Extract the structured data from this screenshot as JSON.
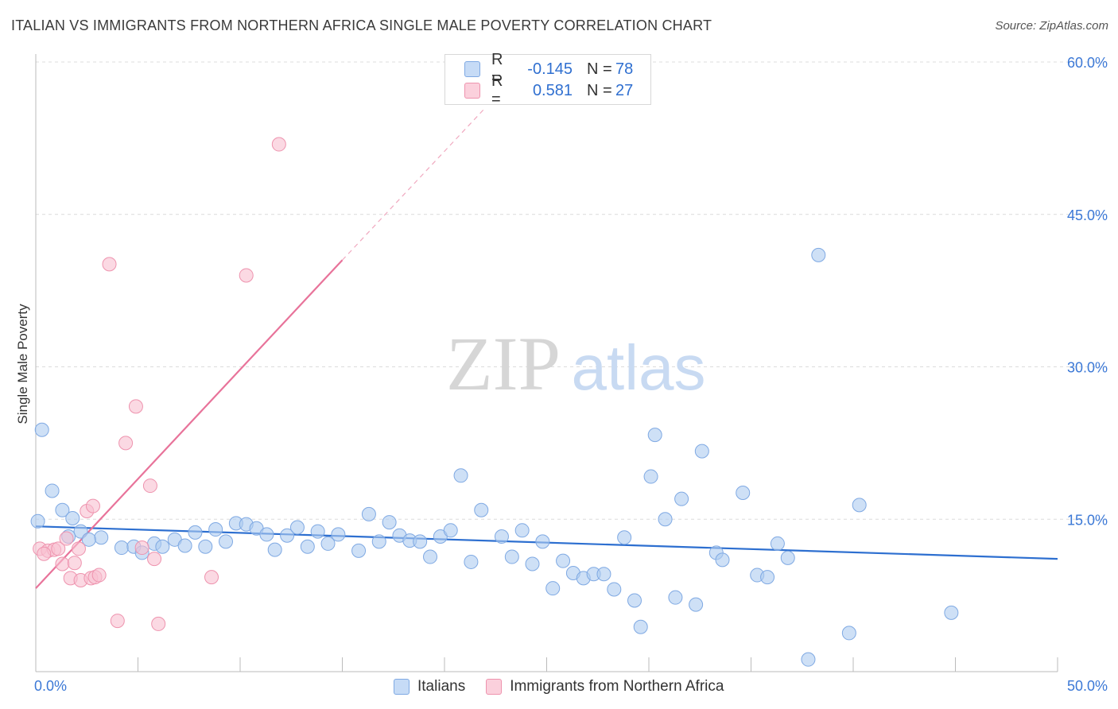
{
  "header": {
    "title": "ITALIAN VS IMMIGRANTS FROM NORTHERN AFRICA SINGLE MALE POVERTY CORRELATION CHART",
    "source": "Source: ZipAtlas.com"
  },
  "watermark": {
    "zip": "ZIP",
    "atlas": "atlas"
  },
  "legend": {
    "r_label": "R =",
    "n_label": "N =",
    "entries": [
      {
        "name": "Italians",
        "r": "-0.145",
        "n": "78",
        "color": "#aecbf0",
        "stroke": "#7fa9e3"
      },
      {
        "name": "Immigrants from Northern Africa",
        "r": "0.581",
        "n": "27",
        "color": "#f8bfd0",
        "stroke": "#ee93ae"
      }
    ]
  },
  "chart_data": {
    "type": "scatter",
    "title": "ITALIAN VS IMMIGRANTS FROM NORTHERN AFRICA SINGLE MALE POVERTY CORRELATION CHART",
    "xlabel": "",
    "ylabel": "Single Male Poverty",
    "xlim": [
      0,
      50
    ],
    "ylim": [
      0,
      60
    ],
    "x_tick_labels": [
      "0.0%",
      "50.0%"
    ],
    "y_tick_labels": [
      "15.0%",
      "30.0%",
      "45.0%",
      "60.0%"
    ],
    "y_ticks": [
      15,
      30,
      45,
      60
    ],
    "grid": true,
    "series": [
      {
        "name": "Italians",
        "color": "#aecbf0",
        "stroke": "#7fa9e3",
        "trend": {
          "x": [
            0,
            50
          ],
          "y": [
            14.3,
            11.1
          ],
          "color": "#2d6fd0"
        },
        "points": [
          [
            0.3,
            23.8
          ],
          [
            0.8,
            17.8
          ],
          [
            1.3,
            15.9
          ],
          [
            1.8,
            15.1
          ],
          [
            2.2,
            13.8
          ],
          [
            3.2,
            13.2
          ],
          [
            2.6,
            13.0
          ],
          [
            4.2,
            12.2
          ],
          [
            4.8,
            12.3
          ],
          [
            5.2,
            11.7
          ],
          [
            5.8,
            12.6
          ],
          [
            6.2,
            12.3
          ],
          [
            6.8,
            13.0
          ],
          [
            7.3,
            12.4
          ],
          [
            7.8,
            13.7
          ],
          [
            8.3,
            12.3
          ],
          [
            8.8,
            14.0
          ],
          [
            9.3,
            12.8
          ],
          [
            9.8,
            14.6
          ],
          [
            10.3,
            14.5
          ],
          [
            10.8,
            14.1
          ],
          [
            11.3,
            13.5
          ],
          [
            11.7,
            12.0
          ],
          [
            12.3,
            13.4
          ],
          [
            12.8,
            14.2
          ],
          [
            13.3,
            12.3
          ],
          [
            13.8,
            13.8
          ],
          [
            14.3,
            12.6
          ],
          [
            14.8,
            13.5
          ],
          [
            15.8,
            11.9
          ],
          [
            16.3,
            15.5
          ],
          [
            16.8,
            12.8
          ],
          [
            17.3,
            14.7
          ],
          [
            17.8,
            13.4
          ],
          [
            18.3,
            12.9
          ],
          [
            18.8,
            12.8
          ],
          [
            19.3,
            11.3
          ],
          [
            19.8,
            13.3
          ],
          [
            20.3,
            13.9
          ],
          [
            20.8,
            19.3
          ],
          [
            21.3,
            10.8
          ],
          [
            21.8,
            15.9
          ],
          [
            22.8,
            13.3
          ],
          [
            23.3,
            11.3
          ],
          [
            23.8,
            13.9
          ],
          [
            24.3,
            10.6
          ],
          [
            24.8,
            12.8
          ],
          [
            25.3,
            8.2
          ],
          [
            25.8,
            10.9
          ],
          [
            26.3,
            9.7
          ],
          [
            26.8,
            9.2
          ],
          [
            27.3,
            9.6
          ],
          [
            27.8,
            9.6
          ],
          [
            28.3,
            8.1
          ],
          [
            28.8,
            13.2
          ],
          [
            29.3,
            7.0
          ],
          [
            29.6,
            4.4
          ],
          [
            30.1,
            19.2
          ],
          [
            30.3,
            23.3
          ],
          [
            30.8,
            15.0
          ],
          [
            31.3,
            7.3
          ],
          [
            31.6,
            17.0
          ],
          [
            32.3,
            6.6
          ],
          [
            32.6,
            21.7
          ],
          [
            33.3,
            11.7
          ],
          [
            33.6,
            11.0
          ],
          [
            34.6,
            17.6
          ],
          [
            35.3,
            9.5
          ],
          [
            35.8,
            9.3
          ],
          [
            36.3,
            12.6
          ],
          [
            36.8,
            11.2
          ],
          [
            37.8,
            1.2
          ],
          [
            38.3,
            41.0
          ],
          [
            39.8,
            3.8
          ],
          [
            40.3,
            16.4
          ],
          [
            44.8,
            5.8
          ],
          [
            0.1,
            14.8
          ],
          [
            1.6,
            13.3
          ]
        ]
      },
      {
        "name": "Immigrants from Northern Africa",
        "color": "#f8bfd0",
        "stroke": "#ee93ae",
        "trend": {
          "x": [
            0,
            15
          ],
          "y": [
            8.2,
            40.5
          ],
          "color": "#e8739a",
          "dashed_to": [
            22.0,
            55.5
          ]
        },
        "points": [
          [
            0.2,
            12.1
          ],
          [
            0.6,
            11.9
          ],
          [
            0.9,
            12.0
          ],
          [
            1.1,
            12.1
          ],
          [
            1.3,
            10.6
          ],
          [
            1.5,
            13.1
          ],
          [
            1.7,
            9.2
          ],
          [
            1.9,
            10.7
          ],
          [
            2.1,
            12.1
          ],
          [
            2.2,
            9.0
          ],
          [
            2.5,
            15.8
          ],
          [
            2.7,
            9.2
          ],
          [
            2.8,
            16.3
          ],
          [
            2.9,
            9.3
          ],
          [
            3.1,
            9.5
          ],
          [
            3.6,
            40.1
          ],
          [
            4.0,
            5.0
          ],
          [
            4.4,
            22.5
          ],
          [
            4.9,
            26.1
          ],
          [
            5.2,
            12.2
          ],
          [
            5.6,
            18.3
          ],
          [
            5.8,
            11.1
          ],
          [
            6.0,
            4.7
          ],
          [
            8.6,
            9.3
          ],
          [
            10.3,
            39.0
          ],
          [
            11.9,
            51.9
          ],
          [
            0.4,
            11.6
          ]
        ]
      }
    ]
  }
}
